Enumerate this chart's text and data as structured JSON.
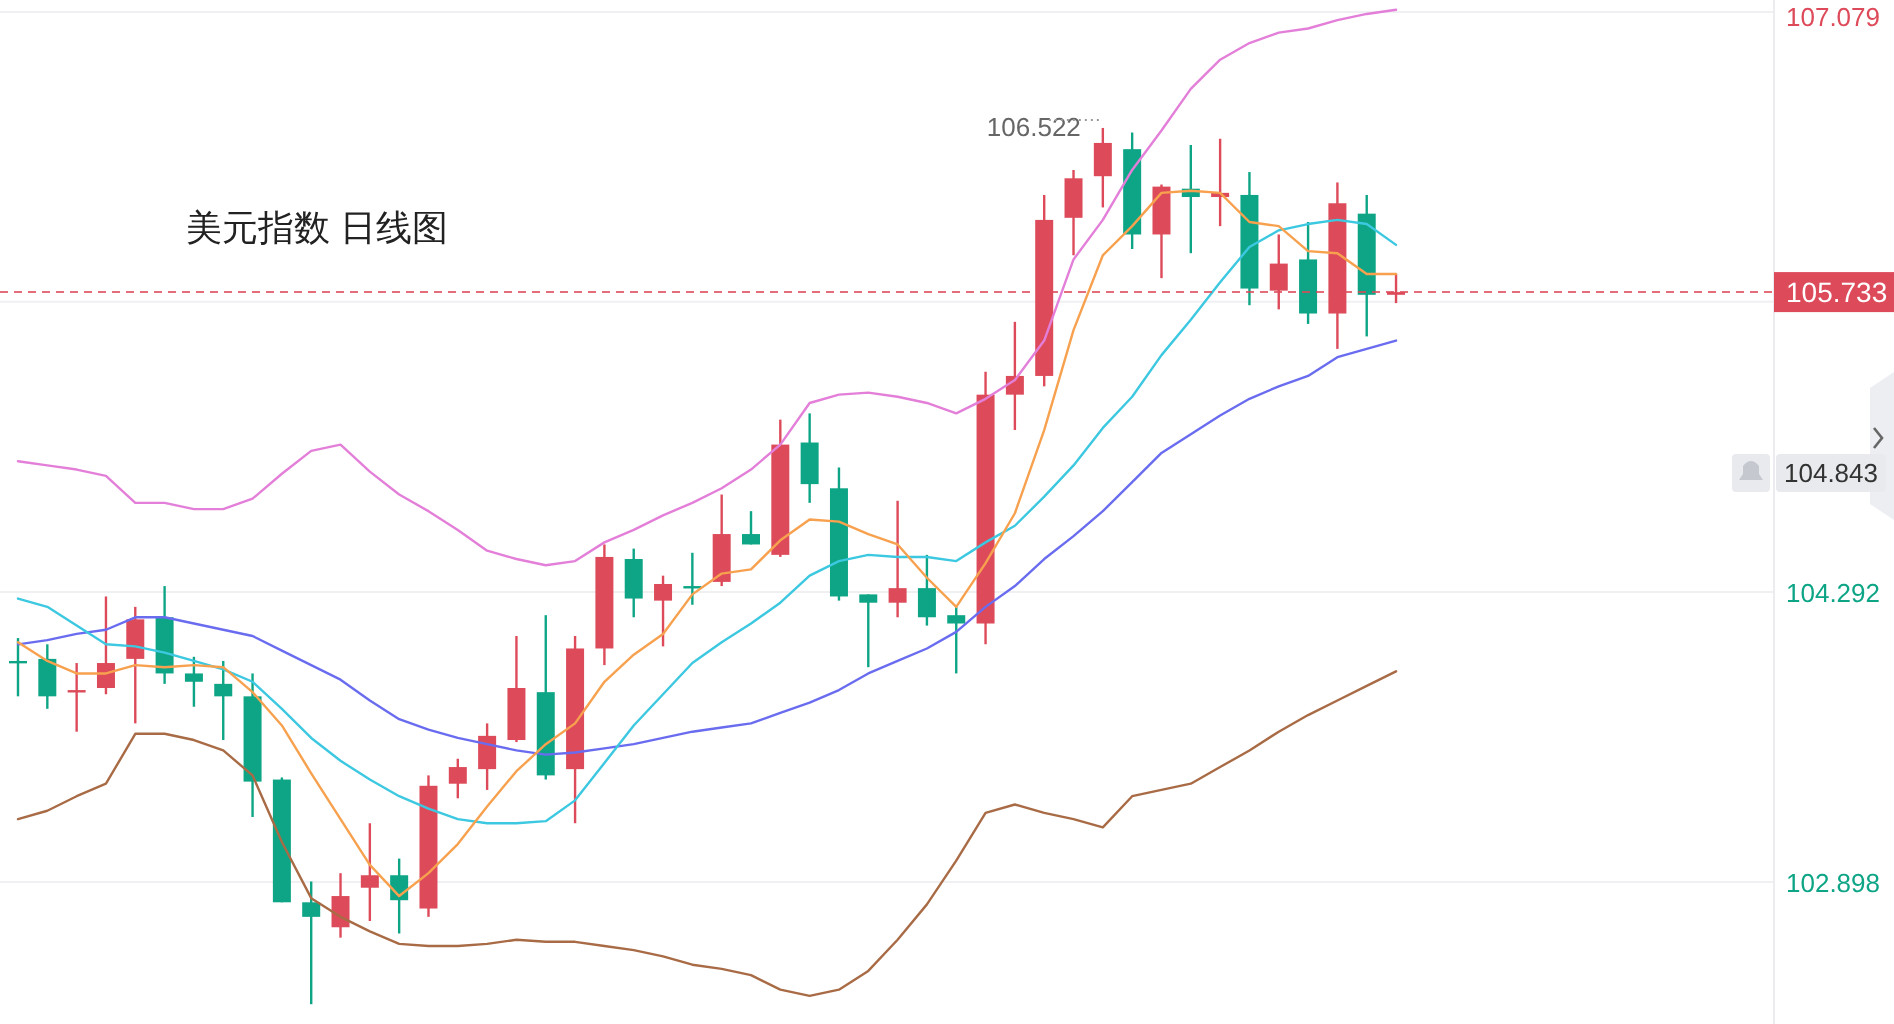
{
  "chart_data": {
    "type": "candlestick",
    "title": "美元指数 日线图",
    "categories": [
      null,
      null,
      null,
      null,
      null,
      null,
      null,
      null,
      null,
      null,
      null,
      null,
      null,
      null,
      null,
      null,
      null,
      null,
      null,
      null,
      null,
      null,
      null,
      null,
      null,
      null,
      null,
      null,
      null,
      null,
      null,
      null,
      null,
      null,
      null,
      null,
      null,
      null,
      null,
      null,
      null,
      null,
      null,
      null,
      null,
      null,
      null,
      null
    ],
    "ohlc": [
      [
        103.96,
        104.07,
        103.79,
        103.96
      ],
      [
        103.97,
        104.04,
        103.73,
        103.79
      ],
      [
        103.82,
        103.95,
        103.62,
        103.82
      ],
      [
        103.83,
        104.27,
        103.8,
        103.95
      ],
      [
        103.97,
        104.22,
        103.66,
        104.16
      ],
      [
        104.17,
        104.32,
        103.85,
        103.9
      ],
      [
        103.9,
        103.98,
        103.74,
        103.86
      ],
      [
        103.85,
        103.96,
        103.58,
        103.79
      ],
      [
        103.79,
        103.9,
        103.21,
        103.38
      ],
      [
        103.39,
        103.4,
        102.8,
        102.8
      ],
      [
        102.8,
        102.9,
        102.31,
        102.73
      ],
      [
        102.68,
        102.94,
        102.63,
        102.83
      ],
      [
        102.87,
        103.18,
        102.71,
        102.93
      ],
      [
        102.93,
        103.01,
        102.65,
        102.81
      ],
      [
        102.77,
        103.41,
        102.73,
        103.36
      ],
      [
        103.37,
        103.49,
        103.3,
        103.45
      ],
      [
        103.44,
        103.66,
        103.34,
        103.6
      ],
      [
        103.58,
        104.08,
        103.57,
        103.83
      ],
      [
        103.81,
        104.18,
        103.39,
        103.41
      ],
      [
        103.44,
        104.08,
        103.18,
        104.02
      ],
      [
        104.02,
        104.52,
        103.94,
        104.46
      ],
      [
        104.45,
        104.5,
        104.17,
        104.26
      ],
      [
        104.25,
        104.37,
        104.03,
        104.33
      ],
      [
        104.32,
        104.48,
        104.23,
        104.32
      ],
      [
        104.34,
        104.76,
        104.32,
        104.57
      ],
      [
        104.57,
        104.68,
        104.52,
        104.52
      ],
      [
        104.47,
        105.12,
        104.46,
        105.0
      ],
      [
        105.01,
        105.15,
        104.72,
        104.81
      ],
      [
        104.79,
        104.89,
        104.25,
        104.27
      ],
      [
        104.28,
        104.28,
        103.93,
        104.24
      ],
      [
        104.24,
        104.73,
        104.17,
        104.31
      ],
      [
        104.31,
        104.47,
        104.13,
        104.17
      ],
      [
        104.18,
        104.22,
        103.9,
        104.14
      ],
      [
        104.14,
        105.35,
        104.04,
        105.24
      ],
      [
        105.24,
        105.59,
        105.07,
        105.33
      ],
      [
        105.33,
        106.2,
        105.28,
        106.08
      ],
      [
        106.09,
        106.32,
        105.91,
        106.28
      ],
      [
        106.29,
        106.522,
        106.14,
        106.45
      ],
      [
        106.42,
        106.5,
        105.94,
        106.01
      ],
      [
        106.01,
        106.25,
        105.8,
        106.24
      ],
      [
        106.23,
        106.44,
        105.92,
        106.19
      ],
      [
        106.19,
        106.47,
        106.05,
        106.21
      ],
      [
        106.2,
        106.31,
        105.67,
        105.75
      ],
      [
        105.74,
        106.01,
        105.65,
        105.87
      ],
      [
        105.89,
        106.07,
        105.58,
        105.63
      ],
      [
        105.63,
        106.26,
        105.46,
        106.16
      ],
      [
        106.11,
        106.2,
        105.52,
        105.72
      ],
      [
        105.72,
        105.82,
        105.68,
        105.733
      ]
    ],
    "colors": [
      "#0ea586",
      "#0ea586",
      "#dd4b5a",
      "#dd4b5a",
      "#dd4b5a",
      "#0ea586",
      "#0ea586",
      "#0ea586",
      "#0ea586",
      "#0ea586",
      "#0ea586",
      "#dd4b5a",
      "#dd4b5a",
      "#0ea586",
      "#dd4b5a",
      "#dd4b5a",
      "#dd4b5a",
      "#dd4b5a",
      "#0ea586",
      "#dd4b5a",
      "#dd4b5a",
      "#0ea586",
      "#dd4b5a",
      "#0ea586",
      "#dd4b5a",
      "#0ea586",
      "#dd4b5a",
      "#0ea586",
      "#0ea586",
      "#0ea586",
      "#dd4b5a",
      "#0ea586",
      "#0ea586",
      "#dd4b5a",
      "#dd4b5a",
      "#dd4b5a",
      "#dd4b5a",
      "#dd4b5a",
      "#0ea586",
      "#dd4b5a",
      "#0ea586",
      "#dd4b5a",
      "#0ea586",
      "#dd4b5a",
      "#0ea586",
      "#dd4b5a",
      "#0ea586",
      "#dd4b5a"
    ],
    "series": [
      {
        "type": "line",
        "color": "#e37fd9",
        "values": [
          104.92,
          104.9,
          104.88,
          104.85,
          104.72,
          104.72,
          104.69,
          104.69,
          104.74,
          104.86,
          104.97,
          105.0,
          104.87,
          104.76,
          104.68,
          104.59,
          104.49,
          104.45,
          104.42,
          104.44,
          104.53,
          104.59,
          104.66,
          104.72,
          104.79,
          104.88,
          105.0,
          105.2,
          105.24,
          105.25,
          105.23,
          105.2,
          105.15,
          105.22,
          105.31,
          105.5,
          105.89,
          106.08,
          106.32,
          106.51,
          106.71,
          106.85,
          106.93,
          106.98,
          107.0,
          107.04,
          107.07,
          107.09
        ]
      },
      {
        "type": "line",
        "color": "#a86b45",
        "values": [
          103.2,
          103.24,
          103.31,
          103.37,
          103.61,
          103.61,
          103.58,
          103.53,
          103.41,
          103.09,
          102.82,
          102.73,
          102.66,
          102.6,
          102.59,
          102.59,
          102.6,
          102.62,
          102.61,
          102.61,
          102.59,
          102.57,
          102.54,
          102.5,
          102.48,
          102.45,
          102.38,
          102.35,
          102.38,
          102.47,
          102.62,
          102.79,
          103.0,
          103.23,
          103.27,
          103.23,
          103.2,
          103.16,
          103.31,
          103.34,
          103.37,
          103.45,
          103.53,
          103.62,
          103.7,
          103.77,
          103.84,
          103.91
        ]
      },
      {
        "type": "line",
        "color": "#6a6cf0",
        "values": [
          104.04,
          104.06,
          104.09,
          104.11,
          104.17,
          104.17,
          104.14,
          104.11,
          104.08,
          104.01,
          103.94,
          103.87,
          103.77,
          103.68,
          103.63,
          103.59,
          103.56,
          103.53,
          103.51,
          103.52,
          103.54,
          103.56,
          103.59,
          103.62,
          103.64,
          103.66,
          103.71,
          103.76,
          103.82,
          103.9,
          103.96,
          104.02,
          104.1,
          104.22,
          104.32,
          104.45,
          104.56,
          104.68,
          104.82,
          104.96,
          105.05,
          105.14,
          105.22,
          105.28,
          105.33,
          105.42,
          105.46,
          105.5
        ]
      },
      {
        "type": "line",
        "color": "#3cc8e0",
        "values": [
          104.26,
          104.22,
          104.13,
          104.04,
          104.03,
          104.0,
          103.96,
          103.92,
          103.86,
          103.73,
          103.59,
          103.48,
          103.39,
          103.31,
          103.25,
          103.2,
          103.18,
          103.18,
          103.19,
          103.29,
          103.47,
          103.65,
          103.8,
          103.95,
          104.05,
          104.14,
          104.24,
          104.37,
          104.44,
          104.47,
          104.46,
          104.46,
          104.44,
          104.53,
          104.61,
          104.75,
          104.9,
          105.08,
          105.23,
          105.43,
          105.6,
          105.78,
          105.95,
          106.03,
          106.06,
          106.08,
          106.06,
          105.96
        ]
      },
      {
        "type": "line",
        "color": "#f7a14f",
        "values": [
          104.05,
          103.96,
          103.9,
          103.9,
          103.94,
          103.93,
          103.94,
          103.93,
          103.81,
          103.65,
          103.42,
          103.2,
          102.98,
          102.83,
          102.94,
          103.08,
          103.26,
          103.43,
          103.56,
          103.66,
          103.86,
          103.99,
          104.09,
          104.28,
          104.38,
          104.4,
          104.54,
          104.64,
          104.63,
          104.57,
          104.52,
          104.36,
          104.22,
          104.43,
          104.67,
          105.07,
          105.55,
          105.91,
          106.05,
          106.21,
          106.22,
          106.21,
          106.07,
          106.05,
          105.93,
          105.92,
          105.82,
          105.82
        ]
      }
    ],
    "ylim": [
      102.215,
      107.137
    ],
    "yticks": [
      102.898,
      104.292,
      {
        "value": 105.686,
        "label": null
      },
      107.079
    ],
    "grid": "y",
    "ref_lines": [
      {
        "axis": "y",
        "value": 105.733,
        "label": "105.733",
        "color": "#dd4b5a",
        "line_style": "dashed"
      }
    ],
    "annotations": [
      "106.522",
      "104.843"
    ]
  }
}
